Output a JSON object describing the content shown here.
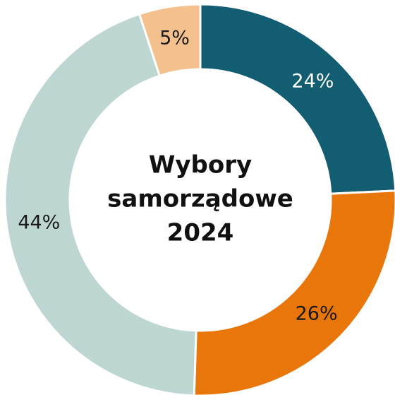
{
  "chart_data": {
    "type": "donut",
    "title": [
      "Wybory",
      "samorządowe",
      "2024"
    ],
    "categories": [
      null,
      null,
      null,
      null
    ],
    "values": [
      24,
      26,
      44,
      5
    ],
    "value_labels": [
      "24%",
      "26%",
      "44%",
      "5%"
    ],
    "colors": [
      "#135d72",
      "#e8760a",
      "#bdd6d1",
      "#f4c08e"
    ],
    "label_colors": [
      "#ffffff",
      "#1a1a1a",
      "#1a1a1a",
      "#1a1a1a"
    ]
  }
}
